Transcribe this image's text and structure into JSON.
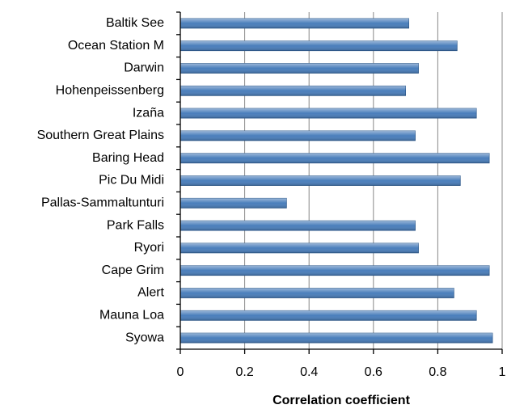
{
  "chart_data": {
    "type": "barh",
    "xlabel": "Correlation coefficient",
    "categories": [
      "Baltik See",
      "Ocean Station M",
      "Darwin",
      "Hohenpeissenberg",
      "Izaña",
      "Southern Great Plains",
      "Baring Head",
      "Pic Du Midi",
      "Pallas-Sammaltunturi",
      "Park Falls",
      "Ryori",
      "Cape Grim",
      "Alert",
      "Mauna Loa",
      "Syowa"
    ],
    "values": [
      0.71,
      0.86,
      0.74,
      0.7,
      0.92,
      0.73,
      0.96,
      0.87,
      0.33,
      0.73,
      0.74,
      0.96,
      0.85,
      0.92,
      0.97
    ],
    "color": "#4a7ebb",
    "xlim": [
      0,
      1
    ],
    "xticks": [
      0,
      0.2,
      0.4,
      0.6,
      0.8,
      1
    ],
    "grid": true
  }
}
